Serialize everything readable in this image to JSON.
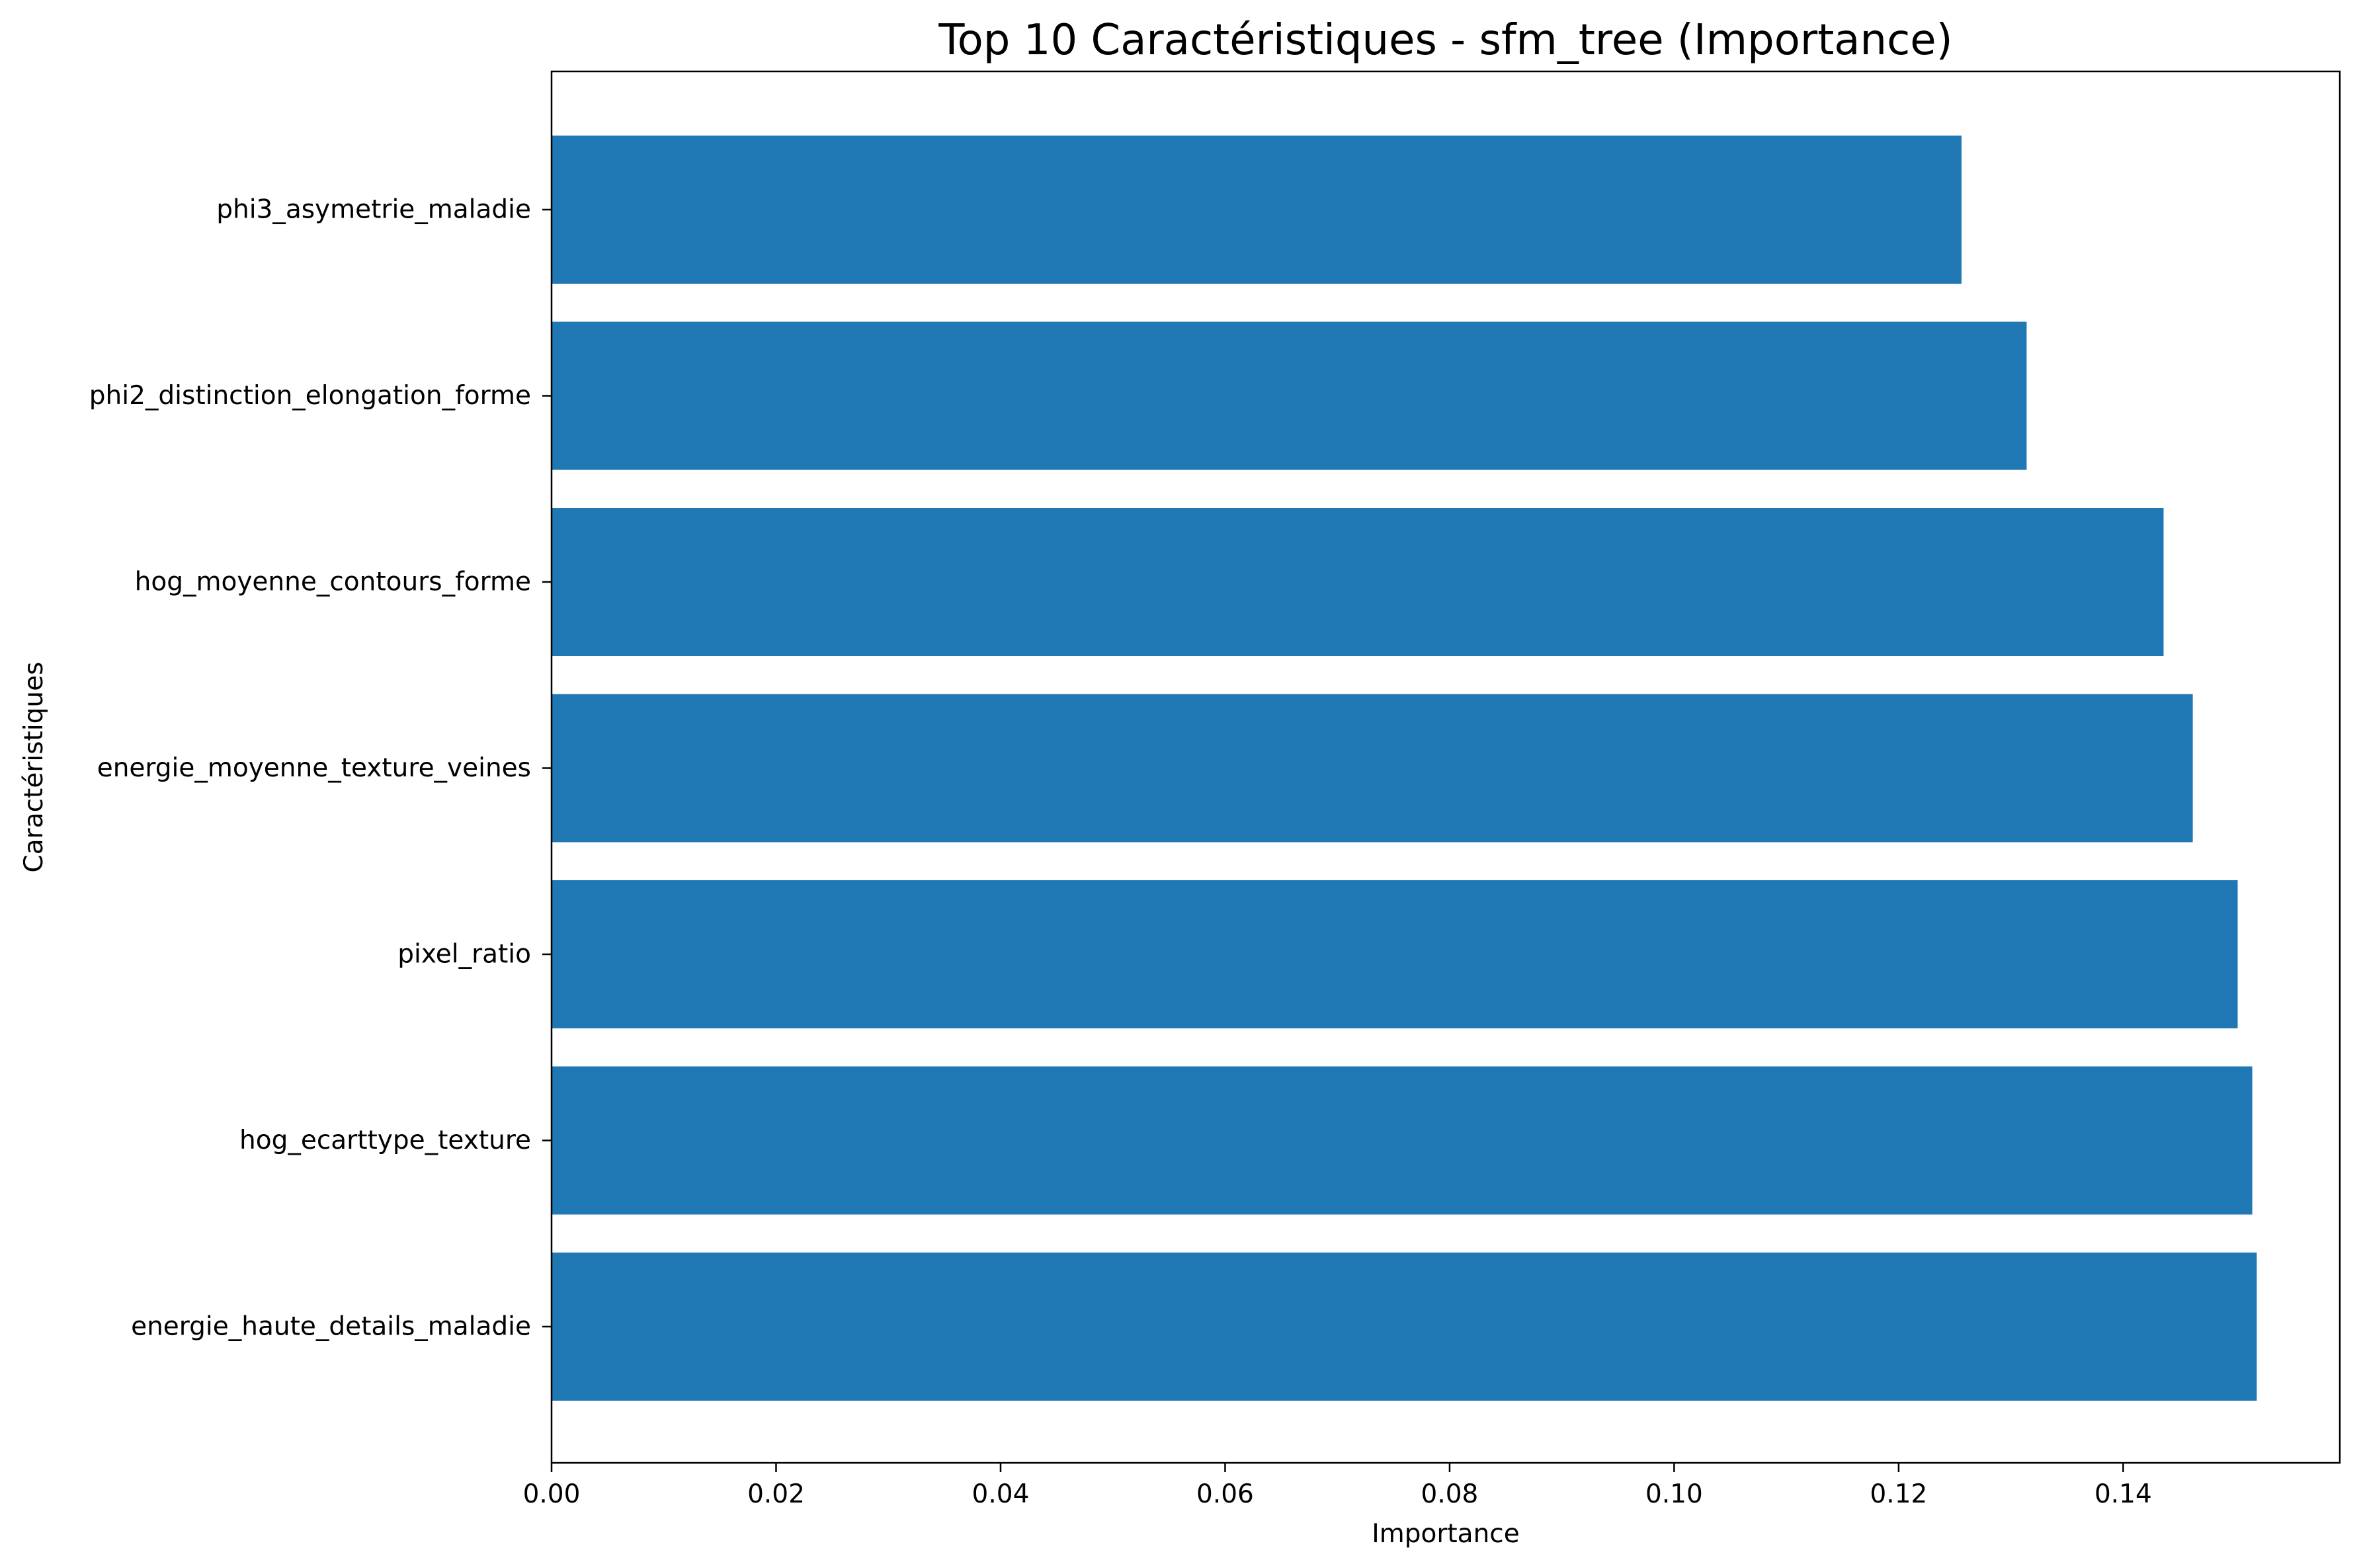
{
  "chart_data": {
    "type": "bar",
    "orientation": "horizontal",
    "title": "Top 10 Caractéristiques - sfm_tree (Importance)",
    "xlabel": "Importance",
    "ylabel": "Caractéristiques",
    "categories": [
      "phi3_asymetrie_maladie",
      "phi2_distinction_elongation_forme",
      "hog_moyenne_contours_forme",
      "energie_moyenne_texture_veines",
      "pixel_ratio",
      "hog_ecarttype_texture",
      "energie_haute_details_maladie"
    ],
    "values": [
      0.1256,
      0.1314,
      0.1436,
      0.1462,
      0.1502,
      0.1515,
      0.1519
    ],
    "xlim": [
      0,
      0.1593
    ],
    "xticks": [
      "0.00",
      "0.02",
      "0.04",
      "0.06",
      "0.08",
      "0.10",
      "0.12",
      "0.14"
    ],
    "xtick_values": [
      0,
      0.02,
      0.04,
      0.06,
      0.08,
      0.1,
      0.12,
      0.14
    ],
    "grid": false,
    "bar_color": "#1f77b4"
  }
}
